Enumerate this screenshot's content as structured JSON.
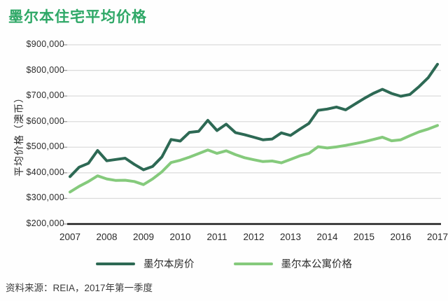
{
  "title": "墨尔本住宅平均价格",
  "source_note": "资料来源：REIA，2017年第一季度",
  "colors": {
    "title": "#2fa867",
    "house_line": "#2d6954",
    "apartment_line": "#85ca7c",
    "grid": "#dcdcdc",
    "axis": "#1a1a1a",
    "tick": "#999999",
    "text": "#2b2b2b"
  },
  "legend": {
    "house_label": "墨尔本房价",
    "apartment_label": "墨尔本公寓价格"
  },
  "chart_data": {
    "type": "line",
    "title": "墨尔本住宅平均价格",
    "xlabel": "",
    "ylabel": "平均价格（澳币）",
    "x_frequency": "quarterly",
    "x_range": [
      "2007 Q1",
      "2017 Q1"
    ],
    "x_tick_labels": [
      "2007",
      "2008",
      "2009",
      "2010",
      "2011",
      "2012",
      "2013",
      "2014",
      "2015",
      "2016",
      "2017"
    ],
    "ylim": [
      200000,
      900000
    ],
    "y_ticks": [
      {
        "label": "$200,000",
        "value": 200000
      },
      {
        "label": "$300,000",
        "value": 300000
      },
      {
        "label": "$400,000",
        "value": 400000
      },
      {
        "label": "$500,000",
        "value": 500000
      },
      {
        "label": "$600,000",
        "value": 600000
      },
      {
        "label": "$700,000",
        "value": 700000
      },
      {
        "label": "$800,000",
        "value": 800000
      },
      {
        "label": "$900,000",
        "value": 900000
      }
    ],
    "grid": true,
    "legend_position": "bottom",
    "series": [
      {
        "name": "墨尔本房价",
        "color": "#2d6954",
        "values": [
          385000,
          422000,
          437000,
          487000,
          447000,
          452000,
          457000,
          433000,
          412000,
          425000,
          462000,
          530000,
          524000,
          558000,
          562000,
          605000,
          565000,
          590000,
          557000,
          549000,
          539000,
          529000,
          532000,
          556000,
          546000,
          570000,
          593000,
          644000,
          649000,
          657000,
          646000,
          668000,
          690000,
          710000,
          726000,
          710000,
          699000,
          706000,
          737000,
          772000,
          824000
        ]
      },
      {
        "name": "墨尔本公寓价格",
        "color": "#85ca7c",
        "values": [
          325000,
          347000,
          366000,
          388000,
          376000,
          370000,
          371000,
          366000,
          354000,
          376000,
          404000,
          440000,
          449000,
          461000,
          475000,
          489000,
          476000,
          486000,
          471000,
          459000,
          451000,
          444000,
          446000,
          439000,
          452000,
          466000,
          476000,
          502000,
          497000,
          501000,
          507000,
          514000,
          521000,
          530000,
          539000,
          525000,
          529000,
          545000,
          560000,
          571000,
          585000
        ]
      }
    ]
  }
}
